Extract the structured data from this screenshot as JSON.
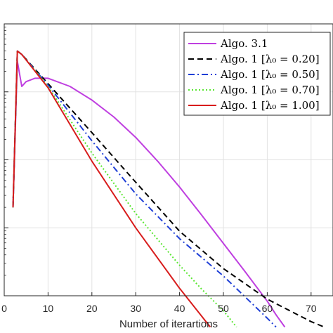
{
  "chart_data": {
    "type": "line",
    "title": "",
    "xlabel": "Number of iterartions",
    "ylabel": "",
    "xlim": [
      0,
      75
    ],
    "x_ticks": [
      0,
      10,
      20,
      30,
      40,
      50,
      60,
      70
    ],
    "x_tick_labels": [
      "0",
      "10",
      "20",
      "30",
      "40",
      "50",
      "60",
      "70"
    ],
    "y_scale": "log",
    "y_decades": 4,
    "grid": true,
    "legend_position": "top-right",
    "series": [
      {
        "name": "Algo. 3.1",
        "color": "#bf3fe0",
        "dash": "solid",
        "points": [
          [
            2,
            0.3
          ],
          [
            3,
            2.45
          ],
          [
            4,
            2.08
          ],
          [
            5,
            2.15
          ],
          [
            7,
            2.2
          ],
          [
            10,
            2.2
          ],
          [
            15,
            2.08
          ],
          [
            20,
            1.88
          ],
          [
            25,
            1.63
          ],
          [
            30,
            1.33
          ],
          [
            35,
            0.98
          ],
          [
            40,
            0.6
          ],
          [
            45,
            0.19
          ],
          [
            50,
            -0.23
          ],
          [
            55,
            -0.65
          ],
          [
            60,
            -1.08
          ],
          [
            62,
            -1.28
          ],
          [
            64,
            -1.46
          ]
        ]
      },
      {
        "name": "Algo. 1 [λ₀ = 0.20]",
        "color": "#000000",
        "dash": "dashed",
        "points": [
          [
            2,
            0.3
          ],
          [
            3,
            2.6
          ],
          [
            4,
            2.55
          ],
          [
            10,
            2.12
          ],
          [
            20,
            1.4
          ],
          [
            30,
            0.67
          ],
          [
            40,
            -0.05
          ],
          [
            50,
            -0.6
          ],
          [
            60,
            -1.05
          ],
          [
            70,
            -1.38
          ],
          [
            73,
            -1.46
          ]
        ]
      },
      {
        "name": "Algo. 1 [λ₀ = 0.50]",
        "color": "#1f3fd6",
        "dash": "dashdot",
        "points": [
          [
            2,
            0.3
          ],
          [
            3,
            2.6
          ],
          [
            4,
            2.55
          ],
          [
            10,
            2.1
          ],
          [
            20,
            1.28
          ],
          [
            30,
            0.5
          ],
          [
            40,
            -0.16
          ],
          [
            50,
            -0.71
          ],
          [
            55,
            -1.02
          ],
          [
            60,
            -1.33
          ],
          [
            62,
            -1.46
          ]
        ]
      },
      {
        "name": "Algo. 1 [λ₀ = 0.70]",
        "color": "#5ae632",
        "dash": "dotted",
        "points": [
          [
            2,
            0.3
          ],
          [
            3,
            2.6
          ],
          [
            4,
            2.55
          ],
          [
            10,
            2.08
          ],
          [
            20,
            1.1
          ],
          [
            30,
            0.21
          ],
          [
            40,
            -0.55
          ],
          [
            45,
            -0.9
          ],
          [
            50,
            -1.22
          ],
          [
            53,
            -1.46
          ]
        ]
      },
      {
        "name": "Algo. 1 [λ₀ = 1.00]",
        "color": "#d81c1c",
        "dash": "solid",
        "points": [
          [
            2,
            0.3
          ],
          [
            3,
            2.6
          ],
          [
            4,
            2.55
          ],
          [
            10,
            2.06
          ],
          [
            20,
            0.98
          ],
          [
            30,
            0.0
          ],
          [
            40,
            -0.89
          ],
          [
            47,
            -1.46
          ]
        ]
      }
    ]
  }
}
